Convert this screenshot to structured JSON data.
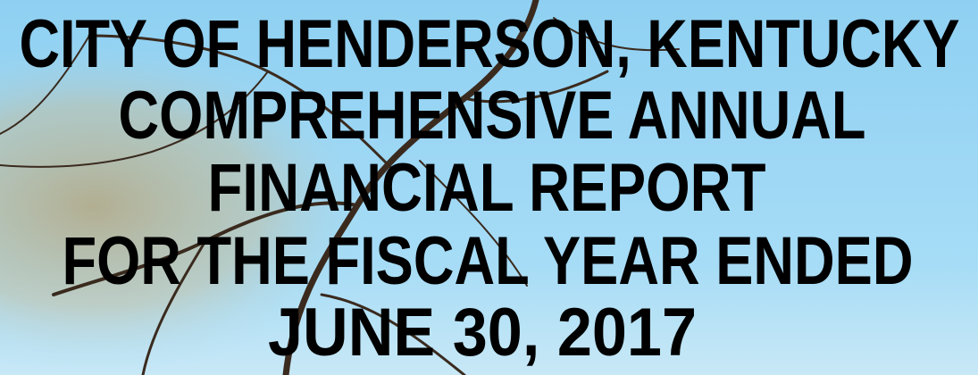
{
  "cover": {
    "title_lines": [
      "CITY OF HENDERSON, KENTUCKY",
      "COMPREHENSIVE ANNUAL",
      "FINANCIAL REPORT",
      "FOR THE FISCAL YEAR ENDED",
      "JUNE 30, 2017"
    ]
  }
}
